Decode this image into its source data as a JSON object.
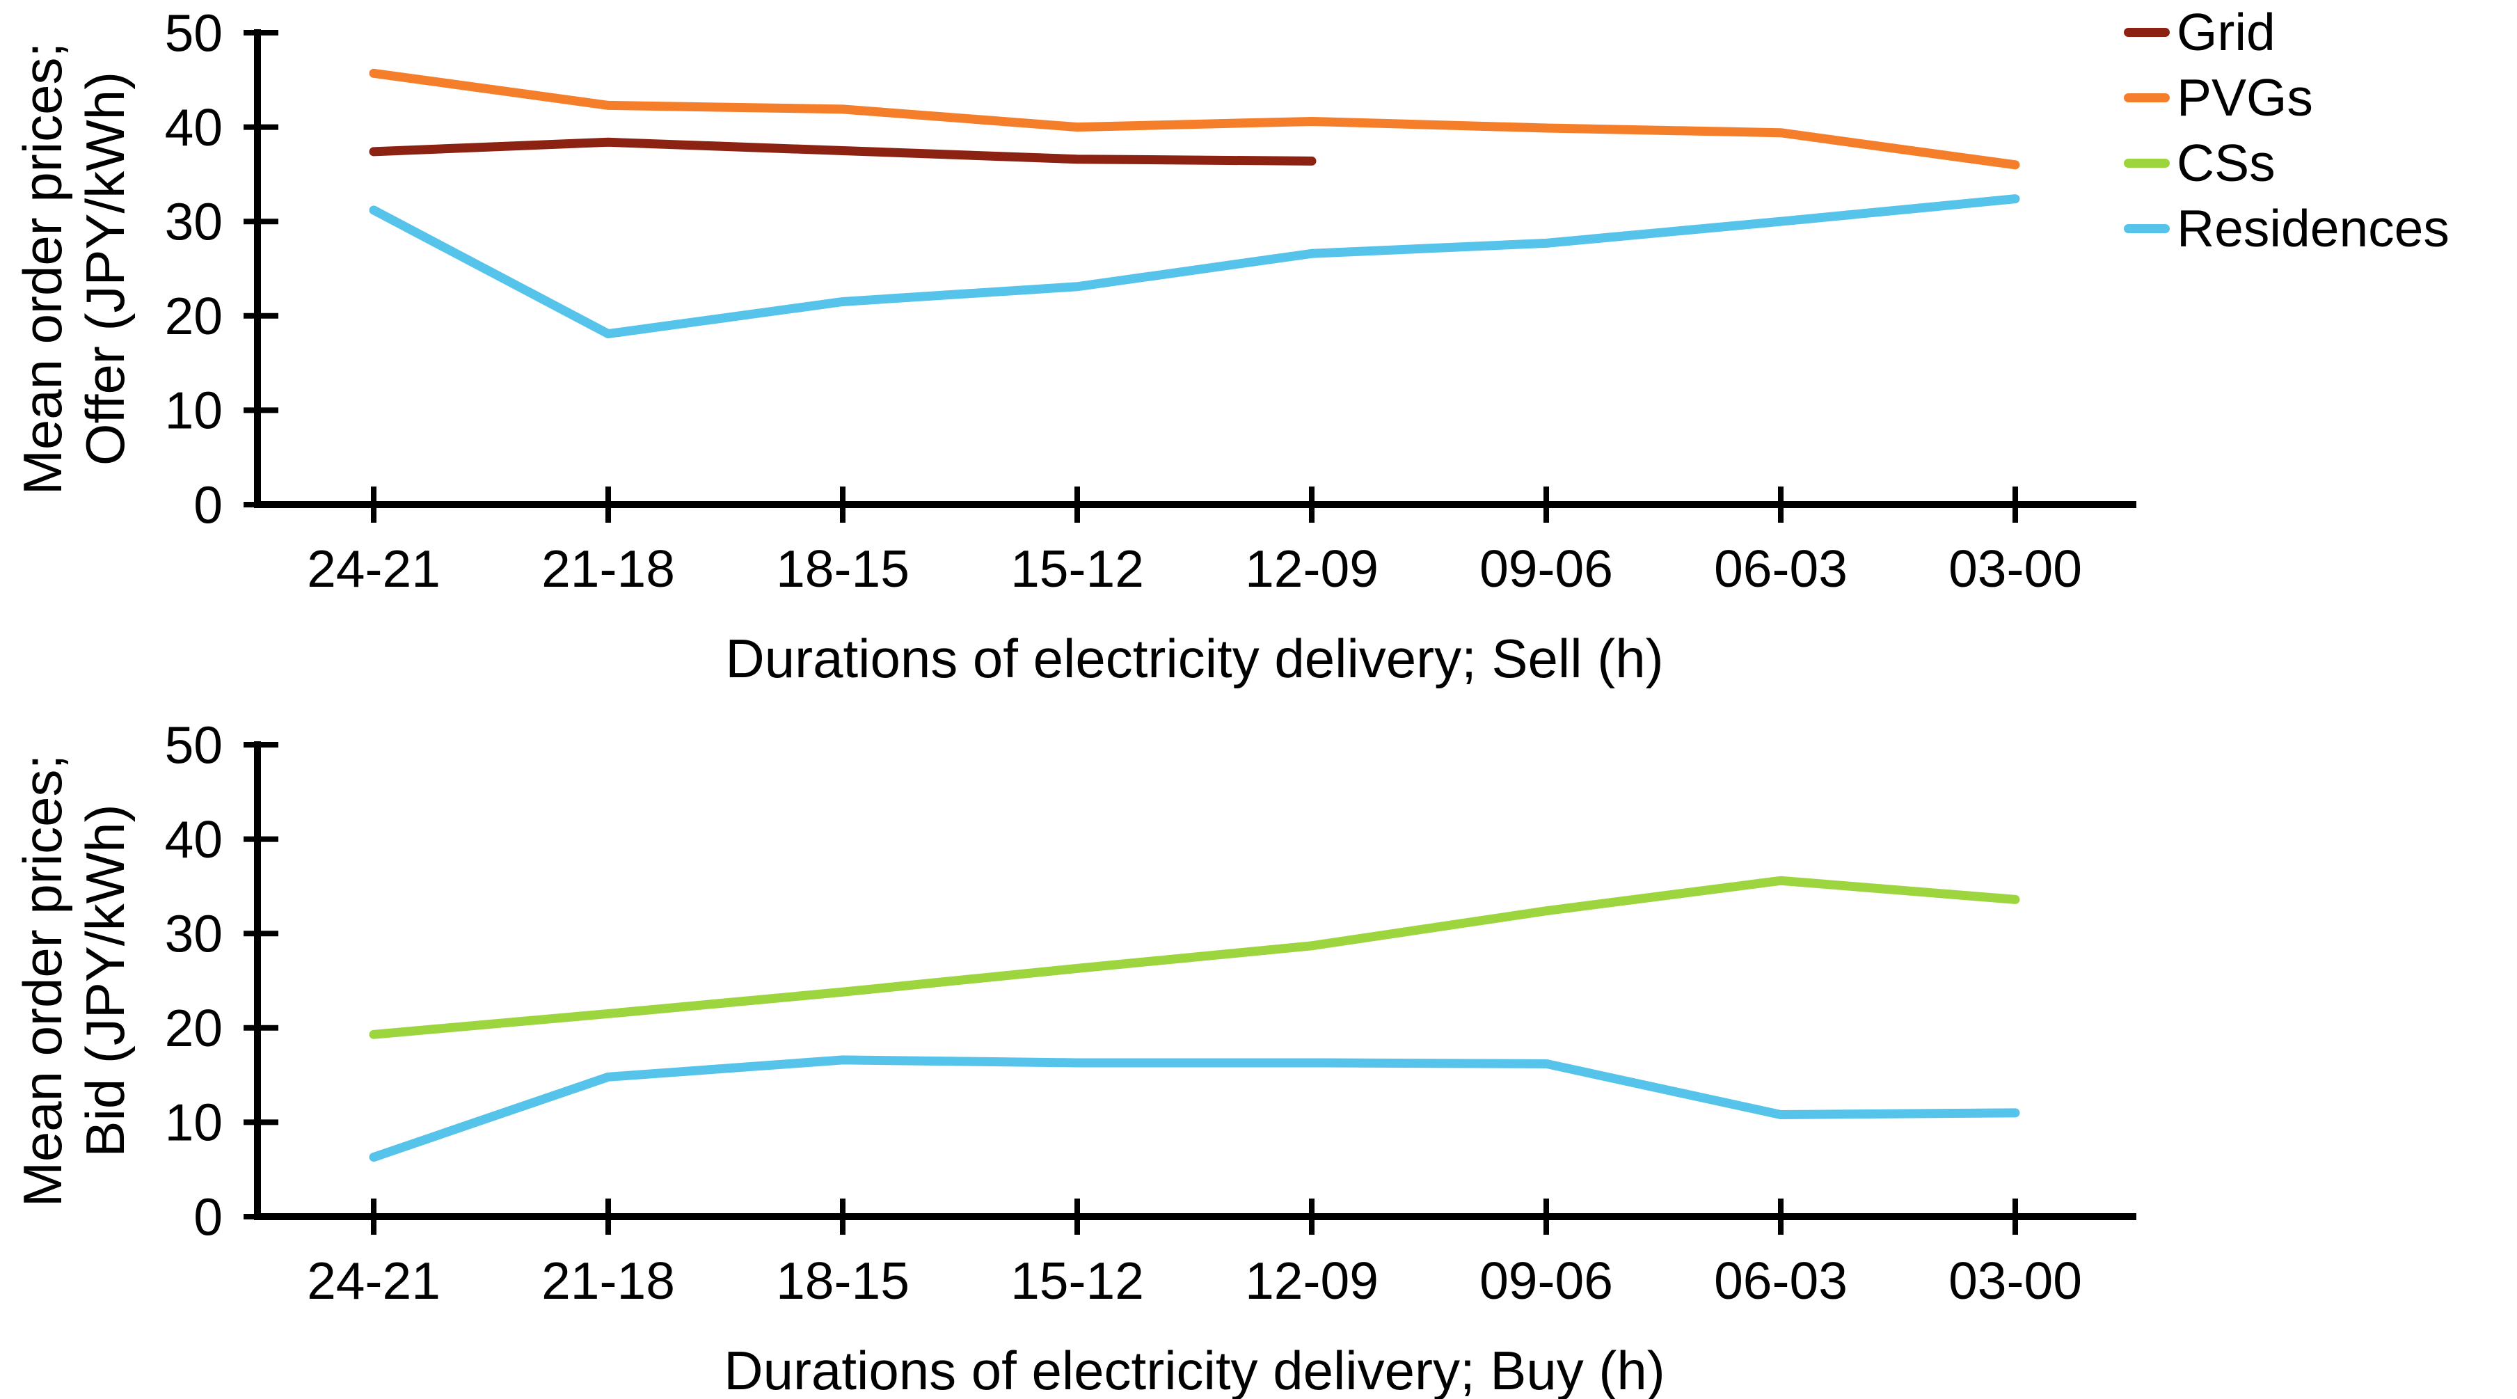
{
  "figure": {
    "background": "#ffffff",
    "text_color": "#000000"
  },
  "legend": {
    "position": "top-right",
    "items": [
      {
        "label": "Grid",
        "color": "#8B2212"
      },
      {
        "label": "PVGs",
        "color": "#F57E2B"
      },
      {
        "label": "CSs",
        "color": "#9CD53E"
      },
      {
        "label": "Residences",
        "color": "#55C3EA"
      }
    ]
  },
  "chart_data": [
    {
      "type": "line",
      "title": "",
      "xlabel": "Durations of electricity delivery; Sell (h)",
      "ylabel_line1": "Mean order prices;",
      "ylabel_line2": "Offer (JPY/kWh)",
      "categories": [
        "24-21",
        "21-18",
        "18-15",
        "15-12",
        "12-09",
        "09-06",
        "06-03",
        "03-00"
      ],
      "yticks": [
        0,
        10,
        20,
        30,
        40,
        50
      ],
      "ylim": [
        0,
        50
      ],
      "grid": false,
      "series": [
        {
          "name": "Grid",
          "color": "#8B2212",
          "values": [
            37.4,
            38.4,
            37.5,
            36.6,
            36.4,
            null,
            null,
            null
          ]
        },
        {
          "name": "PVGs",
          "color": "#F57E2B",
          "values": [
            45.7,
            42.3,
            41.9,
            40.0,
            40.6,
            39.9,
            39.4,
            36.0
          ]
        },
        {
          "name": "Residences",
          "color": "#55C3EA",
          "values": [
            31.2,
            18.1,
            21.5,
            23.1,
            26.6,
            27.7,
            30.0,
            32.4
          ]
        }
      ]
    },
    {
      "type": "line",
      "title": "",
      "xlabel": "Durations of electricity delivery; Buy (h)",
      "ylabel_line1": "Mean order prices;",
      "ylabel_line2": "Bid (JPY/kWh)",
      "categories": [
        "24-21",
        "21-18",
        "18-15",
        "15-12",
        "12-09",
        "09-06",
        "06-03",
        "03-00"
      ],
      "yticks": [
        0,
        10,
        20,
        30,
        40,
        50
      ],
      "ylim": [
        0,
        50
      ],
      "grid": false,
      "series": [
        {
          "name": "CSs",
          "color": "#9CD53E",
          "values": [
            19.3,
            21.5,
            23.8,
            26.3,
            28.7,
            32.4,
            35.6,
            33.6
          ]
        },
        {
          "name": "Residences",
          "color": "#55C3EA",
          "values": [
            6.3,
            14.8,
            16.6,
            16.3,
            16.3,
            16.2,
            10.8,
            11.0
          ]
        }
      ]
    }
  ]
}
